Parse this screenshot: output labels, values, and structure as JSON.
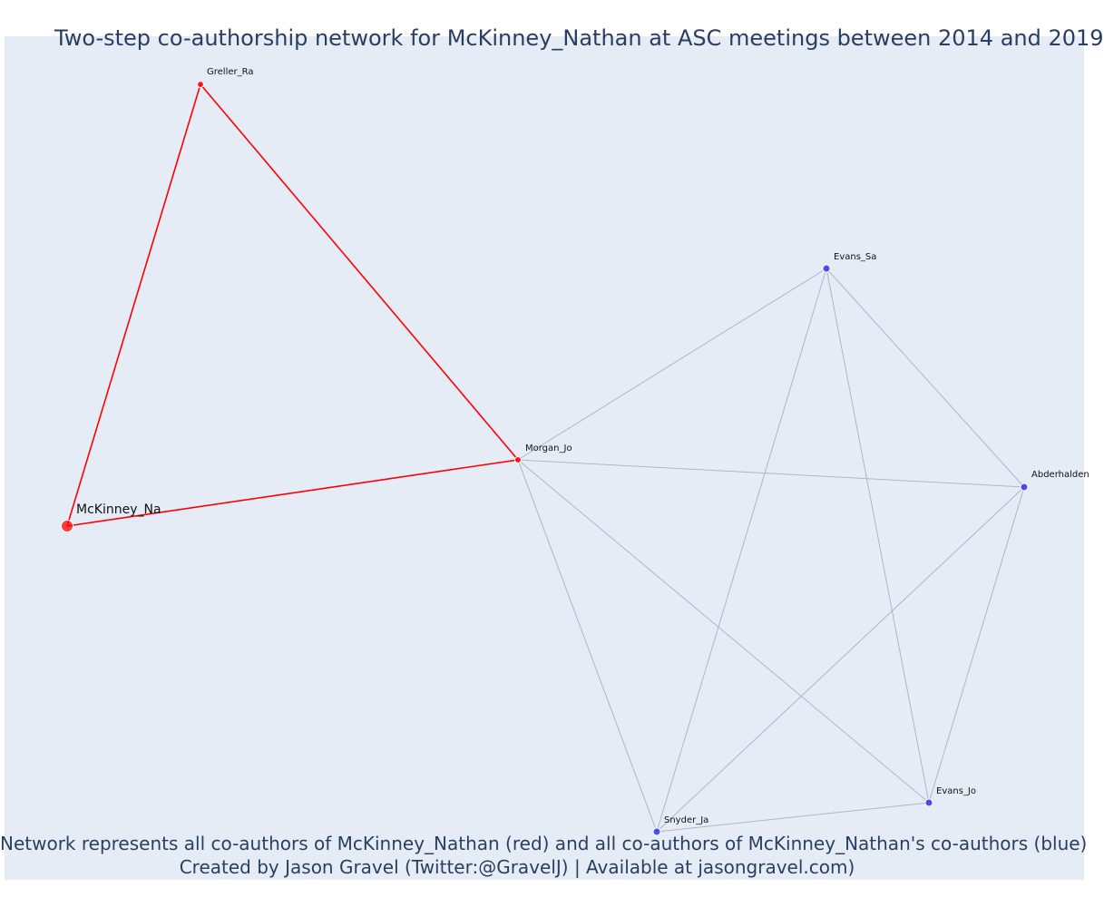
{
  "title": "Two-step co-authorship network for McKinney_Nathan at ASC meetings between 2014 and 2019",
  "captions": {
    "line1": "Network represents all co-authors of McKinney_Nathan (red) and all co-authors of McKinney_Nathan's co-authors (blue)",
    "line2": "Created by Jason Gravel (Twitter:@GravelJ) | Available at jasongravel.com)"
  },
  "colors": {
    "background": "#e5ecf6",
    "red": "#ff0000",
    "blue": "#3333ee",
    "gray_edge": "#b0b4c8",
    "text": "#2a3f5f"
  },
  "nodes": [
    {
      "id": "mckinney",
      "label": "McKinney_Na",
      "group": "ego"
    },
    {
      "id": "greller",
      "label": "Greller_Ra",
      "group": "coauthor"
    },
    {
      "id": "morgan",
      "label": "Morgan_Jo",
      "group": "coauthor"
    },
    {
      "id": "evans_sa",
      "label": "Evans_Sa",
      "group": "second"
    },
    {
      "id": "abderhalden",
      "label": "Abderhalden",
      "group": "second"
    },
    {
      "id": "evans_jo",
      "label": "Evans_Jo",
      "group": "second"
    },
    {
      "id": "snyder",
      "label": "Snyder_Ja",
      "group": "second"
    }
  ],
  "edges": [
    {
      "source": "mckinney",
      "target": "greller",
      "kind": "direct"
    },
    {
      "source": "mckinney",
      "target": "morgan",
      "kind": "direct"
    },
    {
      "source": "greller",
      "target": "morgan",
      "kind": "direct"
    },
    {
      "source": "morgan",
      "target": "evans_sa",
      "kind": "indirect"
    },
    {
      "source": "morgan",
      "target": "abderhalden",
      "kind": "indirect"
    },
    {
      "source": "morgan",
      "target": "evans_jo",
      "kind": "indirect"
    },
    {
      "source": "morgan",
      "target": "snyder",
      "kind": "indirect"
    },
    {
      "source": "evans_sa",
      "target": "abderhalden",
      "kind": "indirect"
    },
    {
      "source": "evans_sa",
      "target": "evans_jo",
      "kind": "indirect"
    },
    {
      "source": "evans_sa",
      "target": "snyder",
      "kind": "indirect"
    },
    {
      "source": "abderhalden",
      "target": "evans_jo",
      "kind": "indirect"
    },
    {
      "source": "abderhalden",
      "target": "snyder",
      "kind": "indirect"
    },
    {
      "source": "snyder",
      "target": "evans_jo",
      "kind": "indirect"
    }
  ]
}
